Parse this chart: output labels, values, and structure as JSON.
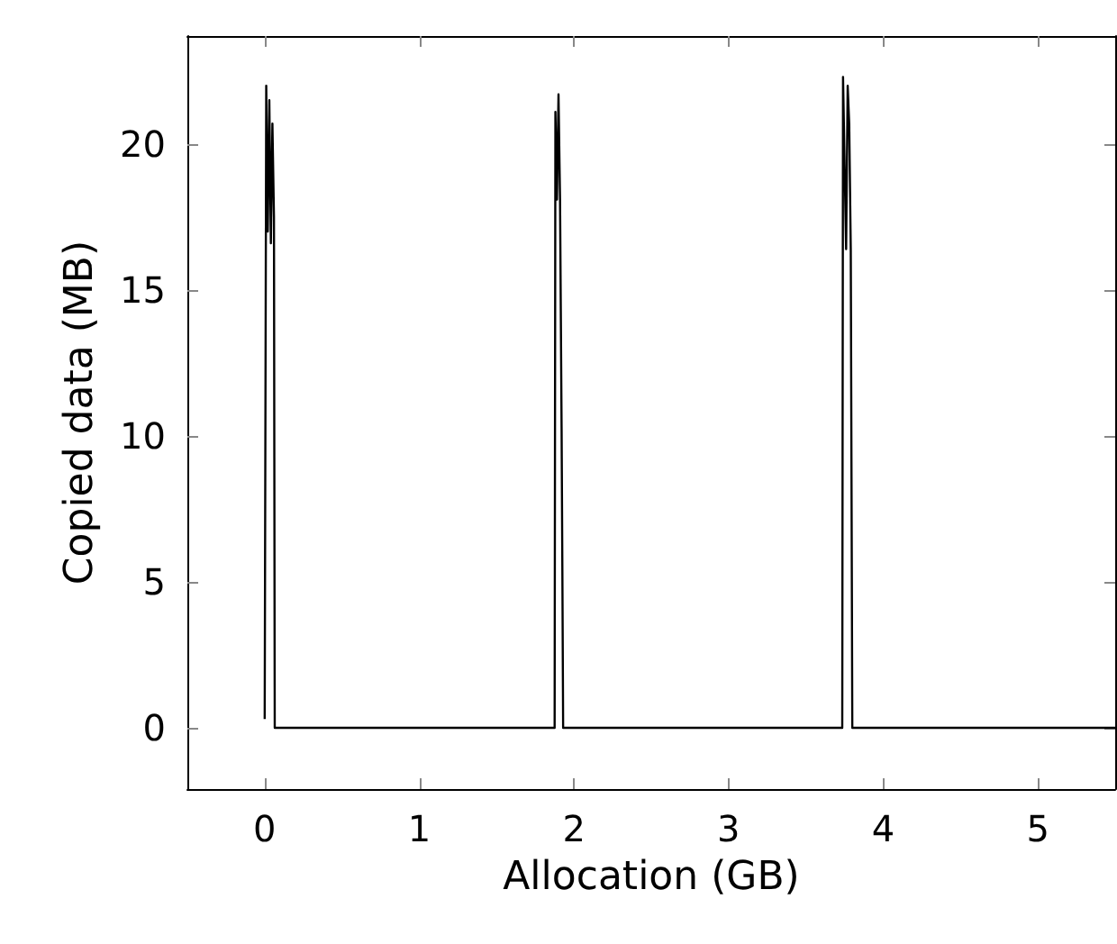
{
  "chart_data": {
    "type": "line",
    "xlabel": "Allocation (GB)",
    "ylabel": "Copied data (MB)",
    "x": [
      0,
      0.01,
      0.02,
      0.03,
      0.04,
      0.05,
      0.06,
      0.065,
      1.86,
      1.875,
      1.88,
      1.89,
      1.9,
      1.91,
      1.92,
      1.925,
      1.93,
      3.72,
      3.735,
      3.74,
      3.76,
      3.77,
      3.78,
      3.79,
      3.8,
      5.5
    ],
    "series": [
      {
        "color": "#000000",
        "values": [
          0.3,
          22.0,
          17,
          21.5,
          16.6,
          20.7,
          17.5,
          0,
          0,
          0,
          21.1,
          18.1,
          21.7,
          18.1,
          10.3,
          5.4,
          0,
          0,
          0,
          22.3,
          16.4,
          22,
          20.7,
          16.4,
          0,
          0
        ]
      }
    ],
    "xlim": [
      -0.5,
      5.5
    ],
    "ylim": [
      -2.1,
      23.7
    ],
    "xticks": [
      0,
      1,
      2,
      3,
      4,
      5
    ],
    "yticks": [
      0,
      5,
      10,
      15,
      20
    ],
    "grid": false,
    "marker": "none",
    "line_style": "solid"
  }
}
